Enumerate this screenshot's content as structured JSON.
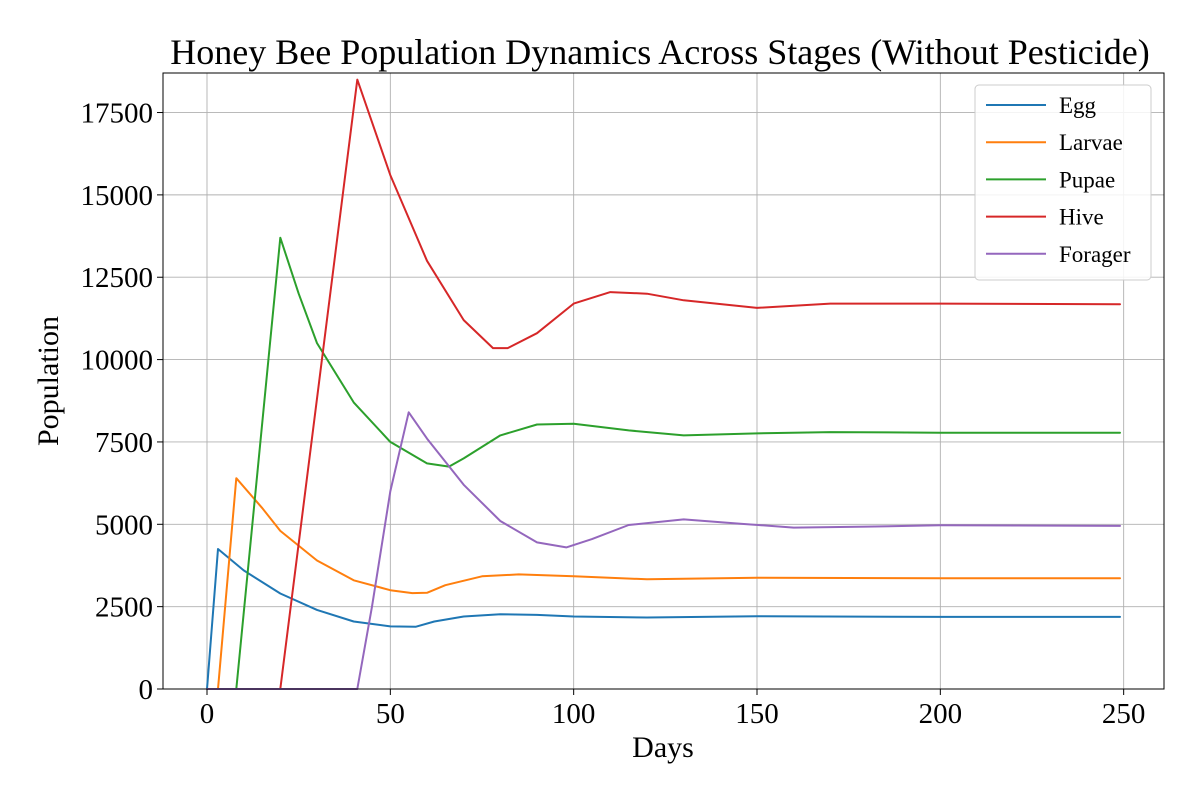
{
  "chart_data": {
    "type": "line",
    "title": "Honey Bee Population Dynamics Across Stages (Without Pesticide)",
    "xlabel": "Days",
    "ylabel": "Population",
    "xlim": [
      -12,
      261
    ],
    "ylim": [
      0,
      18700
    ],
    "xticks": [
      0,
      50,
      100,
      150,
      200,
      250
    ],
    "yticks": [
      0,
      2500,
      5000,
      7500,
      10000,
      12500,
      15000,
      17500
    ],
    "grid": true,
    "legend_position": "top-right",
    "series": [
      {
        "name": "Egg",
        "color": "#1f77b4",
        "points": [
          [
            0,
            0
          ],
          [
            3,
            4250
          ],
          [
            10,
            3600
          ],
          [
            20,
            2900
          ],
          [
            30,
            2400
          ],
          [
            40,
            2050
          ],
          [
            50,
            1900
          ],
          [
            57,
            1890
          ],
          [
            62,
            2050
          ],
          [
            70,
            2200
          ],
          [
            80,
            2270
          ],
          [
            90,
            2250
          ],
          [
            100,
            2200
          ],
          [
            120,
            2170
          ],
          [
            150,
            2210
          ],
          [
            200,
            2190
          ],
          [
            249,
            2190
          ]
        ]
      },
      {
        "name": "Larvae",
        "color": "#ff7f0e",
        "points": [
          [
            3,
            0
          ],
          [
            8,
            6400
          ],
          [
            15,
            5500
          ],
          [
            20,
            4800
          ],
          [
            30,
            3900
          ],
          [
            40,
            3300
          ],
          [
            50,
            3000
          ],
          [
            56,
            2910
          ],
          [
            60,
            2920
          ],
          [
            65,
            3150
          ],
          [
            75,
            3420
          ],
          [
            85,
            3480
          ],
          [
            100,
            3420
          ],
          [
            120,
            3330
          ],
          [
            150,
            3380
          ],
          [
            200,
            3360
          ],
          [
            249,
            3360
          ]
        ]
      },
      {
        "name": "Pupae",
        "color": "#2ca02c",
        "points": [
          [
            8,
            0
          ],
          [
            20,
            13700
          ],
          [
            25,
            12000
          ],
          [
            30,
            10500
          ],
          [
            40,
            8700
          ],
          [
            50,
            7500
          ],
          [
            60,
            6850
          ],
          [
            66,
            6750
          ],
          [
            70,
            7000
          ],
          [
            80,
            7700
          ],
          [
            90,
            8030
          ],
          [
            100,
            8050
          ],
          [
            115,
            7850
          ],
          [
            130,
            7700
          ],
          [
            150,
            7760
          ],
          [
            170,
            7800
          ],
          [
            200,
            7780
          ],
          [
            249,
            7780
          ]
        ]
      },
      {
        "name": "Hive",
        "color": "#d62728",
        "points": [
          [
            20,
            0
          ],
          [
            41,
            18500
          ],
          [
            50,
            15600
          ],
          [
            60,
            13000
          ],
          [
            70,
            11200
          ],
          [
            78,
            10350
          ],
          [
            82,
            10350
          ],
          [
            90,
            10800
          ],
          [
            100,
            11700
          ],
          [
            110,
            12050
          ],
          [
            120,
            12000
          ],
          [
            130,
            11800
          ],
          [
            150,
            11570
          ],
          [
            170,
            11700
          ],
          [
            200,
            11700
          ],
          [
            249,
            11680
          ]
        ]
      },
      {
        "name": "Forager",
        "color": "#9467bd",
        "points": [
          [
            0,
            0
          ],
          [
            41,
            0
          ],
          [
            45,
            2500
          ],
          [
            50,
            6000
          ],
          [
            55,
            8400
          ],
          [
            60,
            7600
          ],
          [
            70,
            6200
          ],
          [
            80,
            5100
          ],
          [
            90,
            4450
          ],
          [
            98,
            4300
          ],
          [
            105,
            4550
          ],
          [
            115,
            4980
          ],
          [
            130,
            5150
          ],
          [
            145,
            5020
          ],
          [
            160,
            4900
          ],
          [
            180,
            4930
          ],
          [
            200,
            4970
          ],
          [
            249,
            4950
          ]
        ]
      }
    ]
  }
}
